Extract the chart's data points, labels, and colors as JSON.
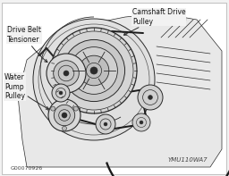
{
  "bg_color": "#f2f2f2",
  "line_color": "#2a2a2a",
  "label_color": "#111111",
  "watermark": "YMU110WA7",
  "part_number": "G00070926",
  "labels": {
    "camshaft": "Camshaft Drive\nPulley",
    "tensioner": "Drive Belt\nTensioner",
    "water_pump": "Water\nPump\nPulley"
  },
  "figsize": [
    2.56,
    1.97
  ],
  "dpi": 100
}
